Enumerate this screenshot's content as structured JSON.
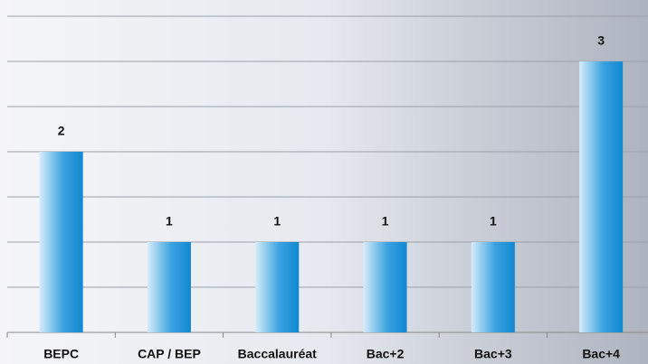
{
  "chart_data": {
    "type": "bar",
    "categories": [
      "BEPC",
      "CAP / BEP",
      "Baccalauréat",
      "Bac+2",
      "Bac+3",
      "Bac+4"
    ],
    "values": [
      2,
      1,
      1,
      1,
      1,
      3
    ],
    "color": "#1a8fd6",
    "ylim": [
      0,
      3.5
    ],
    "yticks": [
      0,
      0.5,
      1,
      1.5,
      2,
      2.5,
      3,
      3.5
    ],
    "grid": true
  }
}
